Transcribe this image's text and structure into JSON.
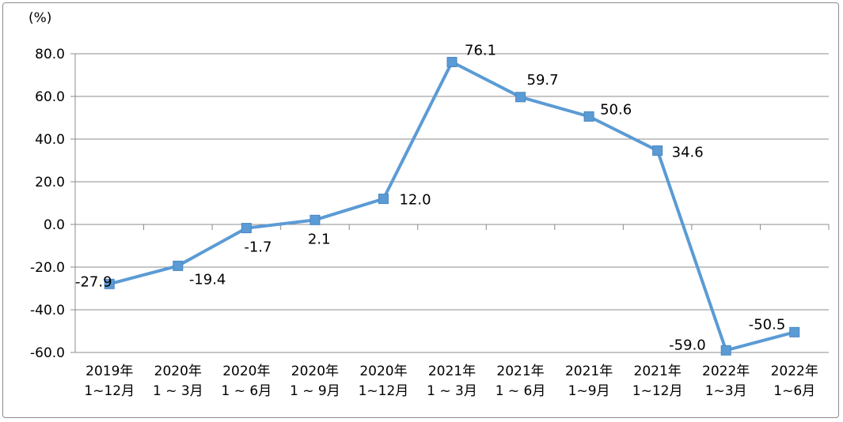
{
  "chart_data": {
    "type": "line",
    "unit_label": "(%)",
    "categories": [
      [
        "2019年",
        "1~12月"
      ],
      [
        "2020年",
        "1 ~ 3月"
      ],
      [
        "2020年",
        "1 ~ 6月"
      ],
      [
        "2020年",
        "1 ~ 9月"
      ],
      [
        "2020年",
        "1~12月"
      ],
      [
        "2021年",
        "1 ~ 3月"
      ],
      [
        "2021年",
        "1 ~ 6月"
      ],
      [
        "2021年",
        "1~9月"
      ],
      [
        "2021年",
        "1~12月"
      ],
      [
        "2022年",
        "1~3月"
      ],
      [
        "2022年",
        "1~6月"
      ]
    ],
    "series": [
      {
        "values": [
          -27.9,
          -19.4,
          -1.7,
          2.1,
          12.0,
          76.1,
          59.7,
          50.6,
          34.6,
          -59.0,
          -50.5
        ],
        "labels": [
          "-27.9",
          "-19.4",
          "-1.7",
          "2.1",
          "12.0",
          "76.1",
          "59.7",
          "50.6",
          "34.6",
          "-59.0",
          "-50.5"
        ]
      }
    ],
    "yticks": [
      "80.0",
      "60.0",
      "40.0",
      "20.0",
      "0.0",
      "-20.0",
      "-40.0",
      "-60.0"
    ],
    "ylim": [
      -60,
      80
    ],
    "grid": true,
    "colors": {
      "line": "#5b9bd5",
      "marker": "#5b9bd5",
      "grid": "#8c8c8c"
    }
  }
}
